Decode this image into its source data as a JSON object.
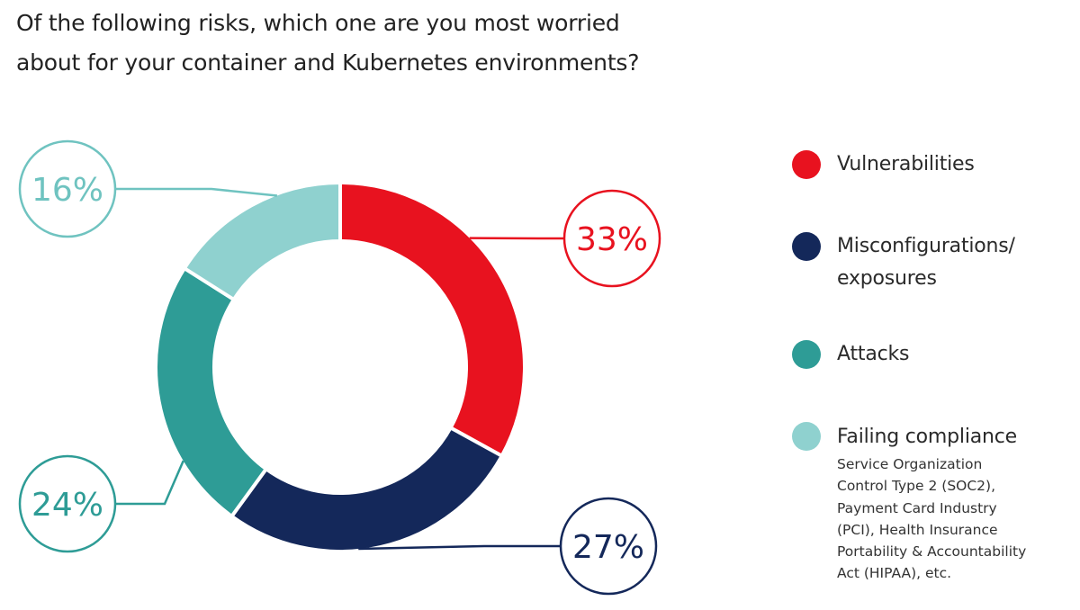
{
  "title_lines": [
    "Of the following risks, which one are you most worried",
    "about for your container and Kubernetes environments?"
  ],
  "chart_data": {
    "type": "pie",
    "donut": true,
    "categories": [
      "Vulnerabilities",
      "Misconfigurations/ exposures",
      "Attacks",
      "Failing compliance"
    ],
    "values": [
      33,
      27,
      24,
      16
    ],
    "value_labels": [
      "33%",
      "27%",
      "24%",
      "16%"
    ],
    "colors": [
      "#e8121f",
      "#14285a",
      "#2e9c96",
      "#8fd1cf"
    ],
    "legend_position": "right"
  },
  "legend": {
    "items": [
      {
        "label_lines": [
          "Vulnerabilities"
        ],
        "color": "#e8121f"
      },
      {
        "label_lines": [
          "Misconfigurations/",
          "exposures"
        ],
        "color": "#14285a"
      },
      {
        "label_lines": [
          "Attacks"
        ],
        "color": "#2e9c96"
      },
      {
        "label_lines": [
          "Failing compliance"
        ],
        "color": "#8fd1cf",
        "note_lines": [
          "Service Organization",
          "Control Type 2 (SOC2),",
          "Payment Card Industry",
          "(PCI), Health Insurance",
          "Portability & Accountability",
          "Act (HIPAA), etc."
        ]
      }
    ]
  }
}
